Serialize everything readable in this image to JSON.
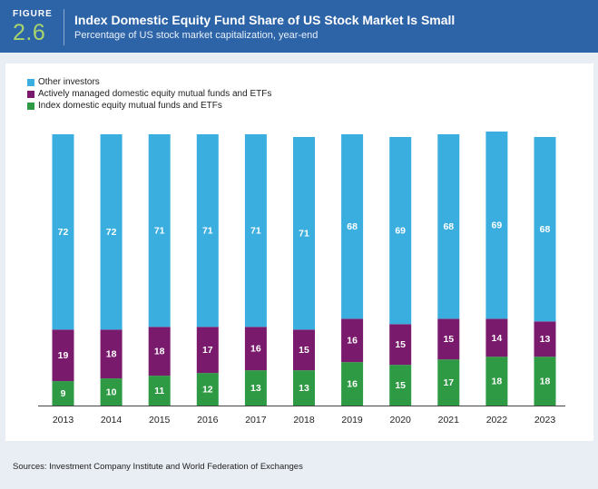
{
  "header": {
    "figure_label": "FIGURE",
    "figure_number": "2.6",
    "title": "Index Domestic Equity Fund Share of US Stock Market Is Small",
    "subtitle": "Percentage of US stock market capitalization, year-end"
  },
  "colors": {
    "header_bg": "#2d64a8",
    "other": "#3baee0",
    "active": "#7a1a6d",
    "index": "#2e9a44"
  },
  "chart_data": {
    "type": "bar",
    "stacked": true,
    "title": "Index Domestic Equity Fund Share of US Stock Market Is Small",
    "subtitle": "Percentage of US stock market capitalization, year-end",
    "categories": [
      "2013",
      "2014",
      "2015",
      "2016",
      "2017",
      "2018",
      "2019",
      "2020",
      "2021",
      "2022",
      "2023"
    ],
    "series": [
      {
        "name": "Index domestic equity mutual funds and ETFs",
        "color": "#2e9a44",
        "values": [
          9,
          10,
          11,
          12,
          13,
          13,
          16,
          15,
          17,
          18,
          18
        ]
      },
      {
        "name": "Actively managed domestic equity mutual funds and ETFs",
        "color": "#7a1a6d",
        "values": [
          19,
          18,
          18,
          17,
          16,
          15,
          16,
          15,
          15,
          14,
          13
        ]
      },
      {
        "name": "Other investors",
        "color": "#3baee0",
        "values": [
          72,
          72,
          71,
          71,
          71,
          71,
          68,
          69,
          68,
          69,
          68
        ]
      }
    ],
    "ylim": [
      0,
      100
    ],
    "grid": false,
    "legend_position": "top-left",
    "data_labels": true
  },
  "legend": [
    {
      "label": "Other investors",
      "color": "#3baee0"
    },
    {
      "label": "Actively managed domestic equity mutual funds and ETFs",
      "color": "#7a1a6d"
    },
    {
      "label": "Index domestic equity mutual funds and ETFs",
      "color": "#2e9a44"
    }
  ],
  "source": "Sources: Investment Company Institute and World Federation of Exchanges"
}
